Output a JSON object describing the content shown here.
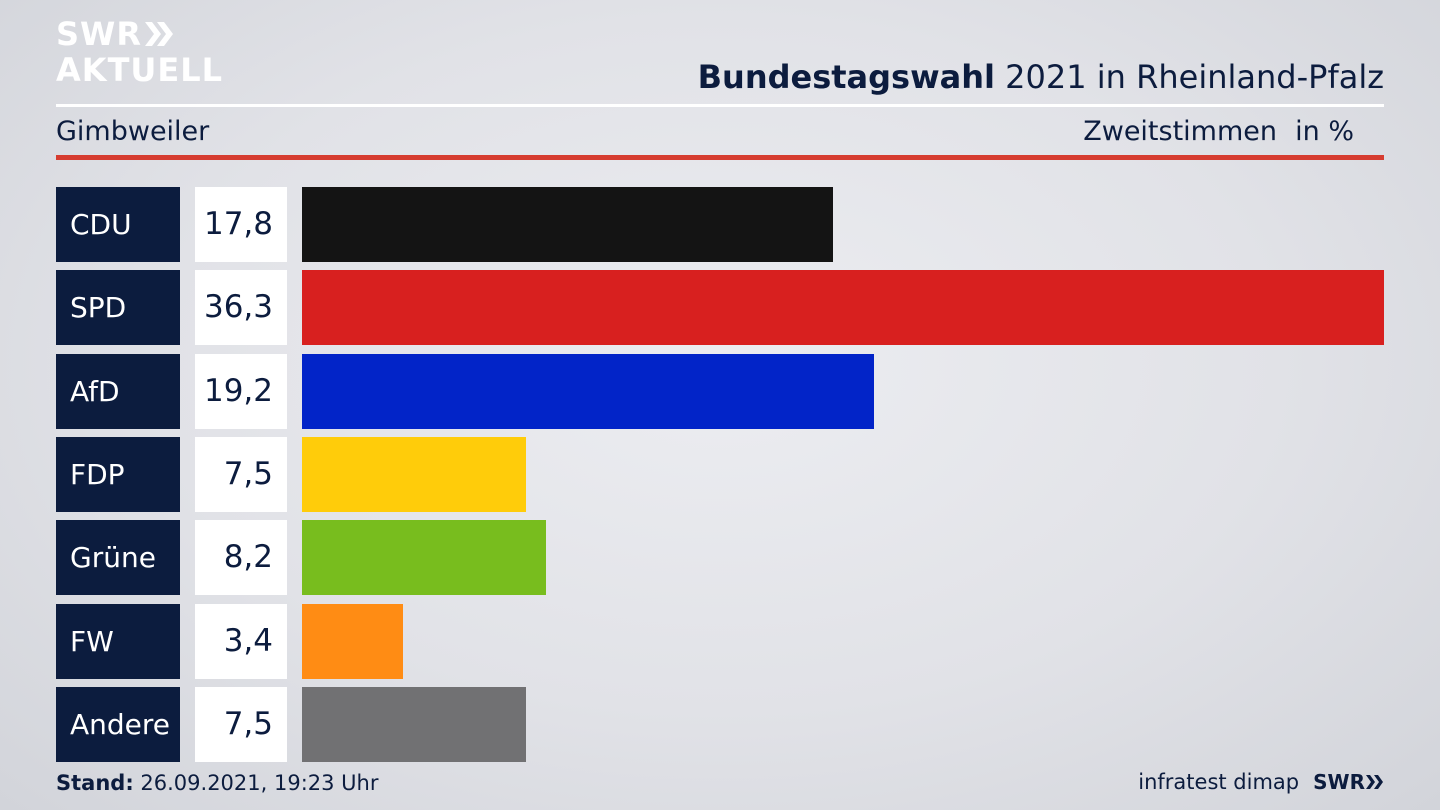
{
  "header": {
    "logo_line1": "SWR",
    "logo_line2": "AKTUELL",
    "title_bold": "Bundestagswahl",
    "title_rest": " 2021 in Rheinland-Pfalz",
    "location": "Gimbweiler",
    "vote_type": "Zweitstimmen",
    "unit": "in %"
  },
  "chart_data": {
    "type": "bar",
    "orientation": "horizontal",
    "categories": [
      "CDU",
      "SPD",
      "AfD",
      "FDP",
      "Grüne",
      "FW",
      "Andere"
    ],
    "values": [
      17.8,
      36.3,
      19.2,
      7.5,
      8.2,
      3.4,
      7.5
    ],
    "value_labels": [
      "17,8",
      "36,3",
      "19,2",
      "7,5",
      "8,2",
      "3,4",
      "7,5"
    ],
    "colors": [
      "#141414",
      "#d8201f",
      "#0224c8",
      "#ffcc0a",
      "#78bd1e",
      "#ff8c14",
      "#717173"
    ],
    "title": "Bundestagswahl 2021 in Rheinland-Pfalz",
    "xlabel": "",
    "ylabel": "",
    "xlim": [
      0,
      36.3
    ],
    "grid": false
  },
  "footer": {
    "stand_label": "Stand:",
    "stand_value": " 26.09.2021, 19:23 Uhr",
    "source": "infratest dimap",
    "brand": "SWR"
  }
}
